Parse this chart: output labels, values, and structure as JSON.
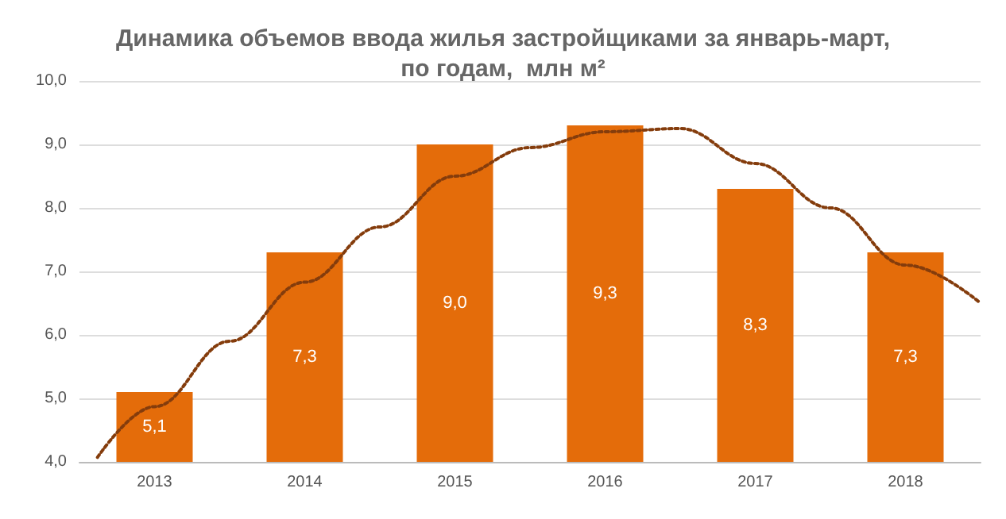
{
  "chart_data": {
    "type": "bar",
    "title": "Динамика объемов ввода жилья застройщиками за январь-март,\nпо годам,  млн м²",
    "x": [
      2013,
      2014,
      2015,
      2016,
      2017,
      2018
    ],
    "xlim": [
      2012.5,
      2018.5
    ],
    "xticks": [
      2013,
      2014,
      2015,
      2016,
      2017,
      2018
    ],
    "ylim": [
      4,
      10
    ],
    "yticks": [
      {
        "value": 4,
        "label": "4,0"
      },
      {
        "value": 5,
        "label": "5,0"
      },
      {
        "value": 6,
        "label": "6,0"
      },
      {
        "value": 7,
        "label": "7,0"
      },
      {
        "value": 8,
        "label": "8,0"
      },
      {
        "value": 9,
        "label": "9,0"
      },
      {
        "value": 10,
        "label": "10,0"
      }
    ],
    "grid": "y",
    "series": [
      {
        "color": "#e46c0a",
        "values": [
          5.1,
          7.3,
          9.0,
          9.3,
          8.3,
          7.3
        ],
        "value_labels": [
          "5,1",
          "7,3",
          "9,0",
          "9,3",
          "8,3",
          "7,3"
        ]
      },
      {
        "type": "line",
        "color": "#843c0c",
        "line_style": "dotted",
        "marker": "none",
        "x": [
          2012.62,
          2013,
          2013.5,
          2014,
          2014.5,
          2015,
          2015.5,
          2016,
          2016.5,
          2017,
          2017.5,
          2018,
          2018.5
        ],
        "values": [
          4.07,
          4.87,
          5.9,
          6.83,
          7.7,
          8.5,
          8.95,
          9.2,
          9.25,
          8.7,
          8.0,
          7.1,
          6.5
        ]
      }
    ]
  }
}
